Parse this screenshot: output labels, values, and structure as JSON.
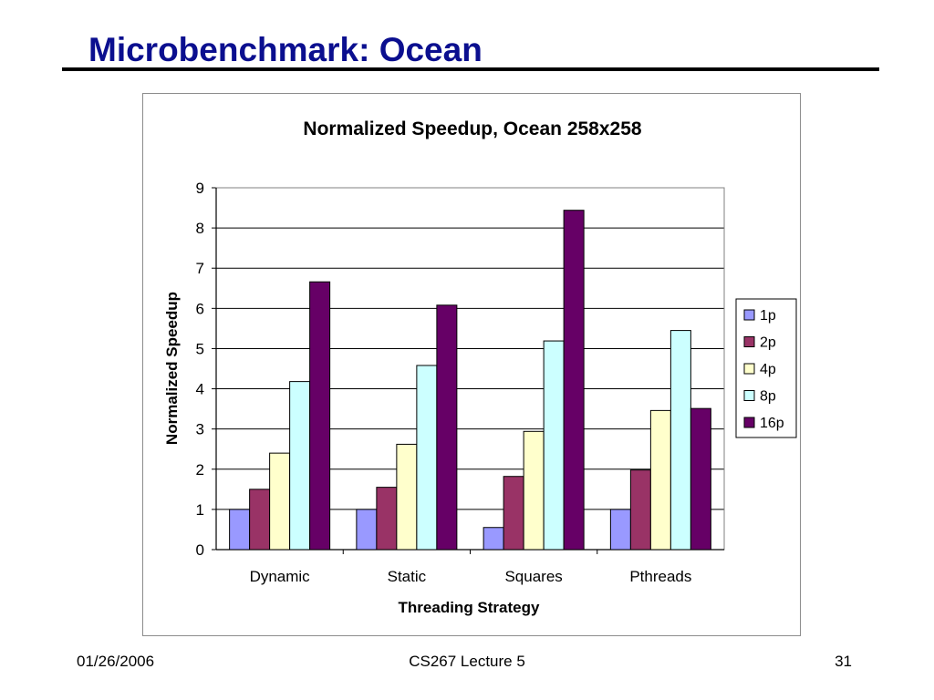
{
  "slide": {
    "title": "Microbenchmark: Ocean",
    "footer_date": "01/26/2006",
    "footer_course": "CS267 Lecture 5",
    "footer_page": "31"
  },
  "chart_data": {
    "type": "bar",
    "title": "Normalized Speedup, Ocean 258x258",
    "xlabel": "Threading Strategy",
    "ylabel": "Normalized Speedup",
    "ylim": [
      0,
      9
    ],
    "yticks": [
      0,
      1,
      2,
      3,
      4,
      5,
      6,
      7,
      8,
      9
    ],
    "grid": true,
    "legend_position": "right",
    "categories": [
      "Dynamic",
      "Static",
      "Squares",
      "Pthreads"
    ],
    "series": [
      {
        "name": "1p",
        "color": "#9999ff",
        "values": [
          1.0,
          1.0,
          0.55,
          1.0
        ]
      },
      {
        "name": "2p",
        "color": "#993366",
        "values": [
          1.5,
          1.55,
          1.82,
          1.98
        ]
      },
      {
        "name": "4p",
        "color": "#ffffcc",
        "values": [
          2.4,
          2.62,
          2.94,
          3.46
        ]
      },
      {
        "name": "8p",
        "color": "#ccffff",
        "values": [
          4.18,
          4.58,
          5.19,
          5.45
        ]
      },
      {
        "name": "16p",
        "color": "#660066",
        "values": [
          6.66,
          6.08,
          8.44,
          3.51
        ]
      }
    ]
  }
}
